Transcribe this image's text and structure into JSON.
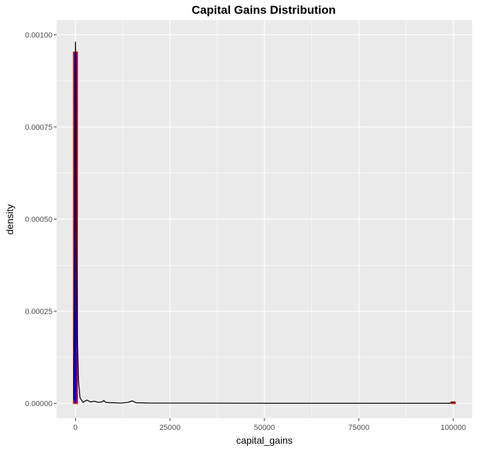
{
  "chart_data": {
    "type": "bar",
    "title": "Capital Gains Distribution",
    "xlabel": "capital_gains",
    "ylabel": "density",
    "xlim": [
      -5000,
      105000
    ],
    "ylim": [
      -4e-05,
      0.00104
    ],
    "x_ticks": [
      0,
      25000,
      50000,
      75000,
      100000
    ],
    "x_tick_labels": [
      "0",
      "25000",
      "50000",
      "75000",
      "100000"
    ],
    "y_ticks": [
      0,
      0.00025,
      0.0005,
      0.00075,
      0.001
    ],
    "y_tick_labels": [
      "0.00000",
      "0.00025",
      "0.00050",
      "0.00075",
      "0.00100"
    ],
    "grid": true,
    "colors": {
      "panel": "#ebebeb",
      "grid_major": "#ffffff",
      "bar_fill": "#0000ff",
      "bar_outline": "#ff0000",
      "density_line": "#000000",
      "tick_text": "#4d4d4d"
    },
    "histogram": {
      "bin_width": 1000,
      "bins": [
        {
          "x0": -500,
          "x1": 500,
          "density": 0.000953
        },
        {
          "x0": 99500,
          "x1": 100500,
          "density": 4e-06
        }
      ]
    },
    "density": {
      "x": [
        -500,
        -200,
        0,
        50,
        150,
        300,
        500,
        800,
        1200,
        2000,
        3000,
        4000,
        5000,
        6000,
        7000,
        7500,
        8000,
        9000,
        10000,
        12000,
        14000,
        15000,
        16000,
        20000,
        25000,
        30000,
        50000,
        75000,
        99000,
        99500,
        100000,
        100500
      ],
      "y": [
        1e-05,
        0.0005,
        0.00098,
        0.00095,
        0.0007,
        0.0004,
        0.00018,
        6e-05,
        1.5e-05,
        3e-06,
        9e-06,
        4e-06,
        6e-06,
        3e-06,
        4e-06,
        8e-06,
        3e-06,
        2e-06,
        2e-06,
        1e-06,
        3e-06,
        7e-06,
        2e-06,
        1e-06,
        1e-06,
        1e-06,
        5e-07,
        5e-07,
        5e-07,
        3e-06,
        3e-06,
        1e-06
      ]
    }
  }
}
